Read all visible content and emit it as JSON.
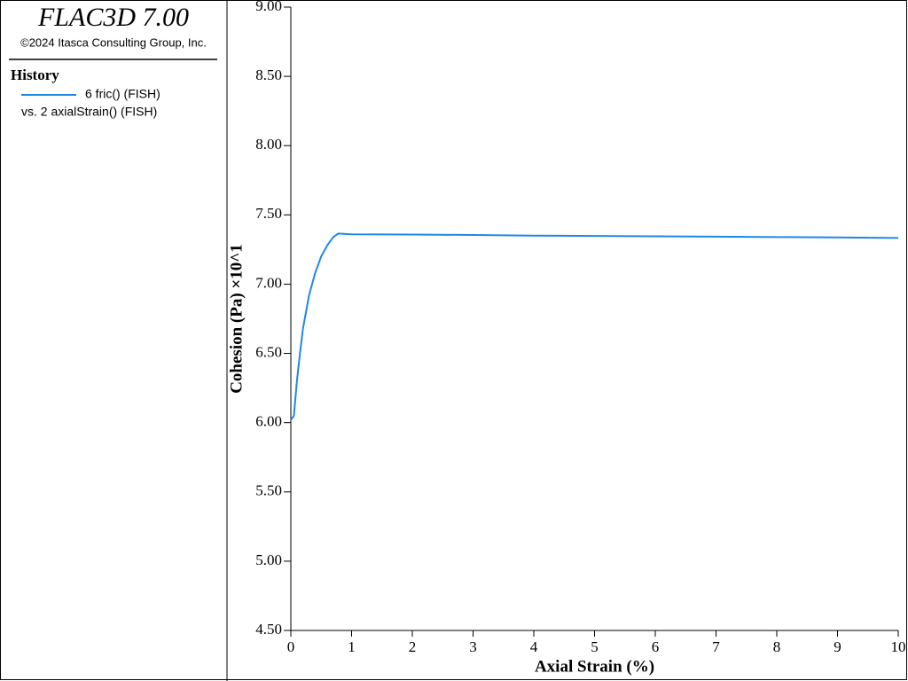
{
  "header": {
    "title": "FLAC3D 7.00",
    "copyright": "©2024 Itasca Consulting Group, Inc."
  },
  "chart_data": {
    "type": "line",
    "legend_title": "History",
    "legend_note": "vs. 2 axialStrain() (FISH)",
    "x_label": "Axial Strain (%)",
    "y_label": "Cohesion (Pa) ×10^1",
    "x": [
      0,
      0.05,
      0.1,
      0.15,
      0.2,
      0.3,
      0.4,
      0.5,
      0.6,
      0.7,
      0.78,
      1,
      2,
      3,
      4,
      5,
      6,
      7,
      8,
      9,
      10
    ],
    "series": [
      {
        "name": "6 fric() (FISH)",
        "color": "#1e88e5",
        "values": [
          6.02,
          6.05,
          6.3,
          6.5,
          6.68,
          6.92,
          7.08,
          7.2,
          7.28,
          7.34,
          7.365,
          7.36,
          7.358,
          7.355,
          7.35,
          7.348,
          7.345,
          7.343,
          7.34,
          7.337,
          7.333
        ]
      }
    ],
    "xlim": [
      0,
      10
    ],
    "xticks": [
      0,
      1,
      2,
      3,
      4,
      5,
      6,
      7,
      8,
      9,
      10
    ],
    "ylim": [
      4.5,
      9
    ],
    "yticks": [
      {
        "value": 4.5,
        "label": "4.50"
      },
      {
        "value": 5,
        "label": "5.00"
      },
      {
        "value": 5.5,
        "label": "5.50"
      },
      {
        "value": 6,
        "label": "6.00"
      },
      {
        "value": 6.5,
        "label": "6.50"
      },
      {
        "value": 7,
        "label": "7.00"
      },
      {
        "value": 7.5,
        "label": "7.50"
      },
      {
        "value": 8,
        "label": "8.00"
      },
      {
        "value": 8.5,
        "label": "8.50"
      },
      {
        "value": 9,
        "label": "9.00"
      }
    ]
  }
}
